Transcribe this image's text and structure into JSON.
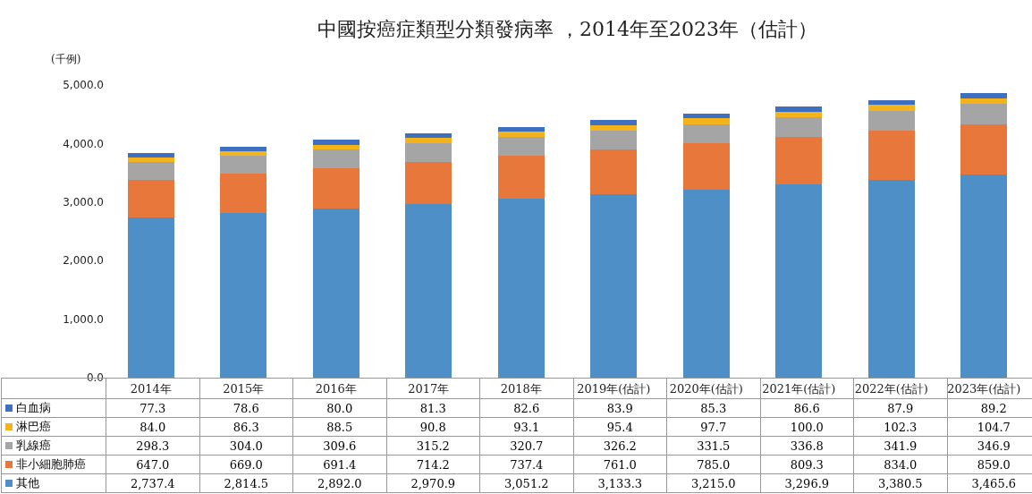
{
  "chart_data": {
    "type": "bar",
    "stacked": true,
    "title": "中國按癌症類型分類發病率 ，2014年至2023年（估計）",
    "ylabel": "(千例)",
    "categories": [
      "2014年",
      "2015年",
      "2016年",
      "2017年",
      "2018年",
      "2019年(估計)",
      "2020年(估計)",
      "2021年(估計)",
      "2022年(估計)",
      "2023年(估計)"
    ],
    "series": [
      {
        "name": "其他",
        "color": "#4f8fc7",
        "values": [
          2737.4,
          2814.5,
          2892.0,
          2970.9,
          3051.2,
          3133.3,
          3215.0,
          3296.9,
          3380.5,
          3465.6
        ],
        "value_labels": [
          "2,737.4",
          "2,814.5",
          "2,892.0",
          "2,970.9",
          "3,051.2",
          "3,133.3",
          "3,215.0",
          "3,296.9",
          "3,380.5",
          "3,465.6"
        ]
      },
      {
        "name": "非小細胞肺癌",
        "color": "#e8773c",
        "values": [
          647.0,
          669.0,
          691.4,
          714.2,
          737.4,
          761.0,
          785.0,
          809.3,
          834.0,
          859.0
        ],
        "value_labels": [
          "647.0",
          "669.0",
          "691.4",
          "714.2",
          "737.4",
          "761.0",
          "785.0",
          "809.3",
          "834.0",
          "859.0"
        ]
      },
      {
        "name": "乳線癌",
        "color": "#a5a5a5",
        "values": [
          298.3,
          304.0,
          309.6,
          315.2,
          320.7,
          326.2,
          331.5,
          336.8,
          341.9,
          346.9
        ],
        "value_labels": [
          "298.3",
          "304.0",
          "309.6",
          "315.2",
          "320.7",
          "326.2",
          "331.5",
          "336.8",
          "341.9",
          "346.9"
        ]
      },
      {
        "name": "淋巴癌",
        "color": "#f5b31b",
        "values": [
          84.0,
          86.3,
          88.5,
          90.8,
          93.1,
          95.4,
          97.7,
          100.0,
          102.3,
          104.7
        ],
        "value_labels": [
          "84.0",
          "86.3",
          "88.5",
          "90.8",
          "93.1",
          "95.4",
          "97.7",
          "100.0",
          "102.3",
          "104.7"
        ]
      },
      {
        "name": "白血病",
        "color": "#3f6fbf",
        "values": [
          77.3,
          78.6,
          80.0,
          81.3,
          82.6,
          83.9,
          85.3,
          86.6,
          87.9,
          89.2
        ],
        "value_labels": [
          "77.3",
          "78.6",
          "80.0",
          "81.3",
          "82.6",
          "83.9",
          "85.3",
          "86.6",
          "87.9",
          "89.2"
        ]
      }
    ],
    "ylim": [
      0,
      5000
    ],
    "yticks": [
      {
        "value": 0,
        "label": "0.0"
      },
      {
        "value": 1000,
        "label": "1,000.0"
      },
      {
        "value": 2000,
        "label": "2,000.0"
      },
      {
        "value": 3000,
        "label": "3,000.0"
      },
      {
        "value": 4000,
        "label": "4,000.0"
      },
      {
        "value": 5000,
        "label": "5,000.0"
      }
    ],
    "grid": false,
    "legend": "bottom left"
  }
}
